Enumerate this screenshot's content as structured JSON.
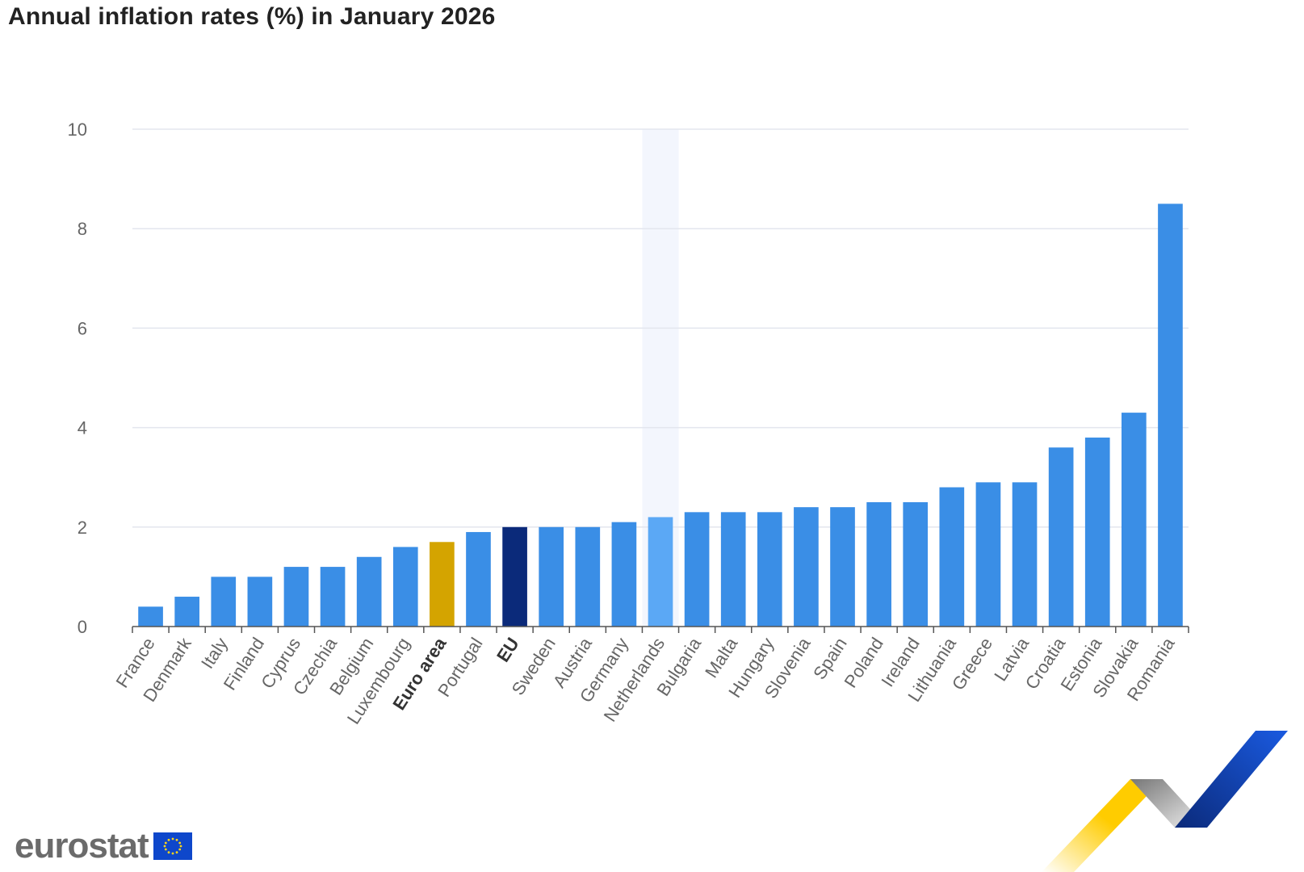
{
  "header": {
    "title": "Annual inflation rates (%) in January 2026"
  },
  "chart_data": {
    "type": "bar",
    "title": "Annual inflation rates (%) in January 2026",
    "xlabel": "",
    "ylabel": "",
    "ylim": [
      0,
      10
    ],
    "yticks": [
      0,
      2,
      4,
      6,
      8,
      10
    ],
    "grid": true,
    "highlighted_category": "Netherlands",
    "categories": [
      "France",
      "Denmark",
      "Italy",
      "Finland",
      "Cyprus",
      "Czechia",
      "Belgium",
      "Luxembourg",
      "Euro area",
      "Portugal",
      "EU",
      "Sweden",
      "Austria",
      "Germany",
      "Netherlands",
      "Bulgaria",
      "Malta",
      "Hungary",
      "Slovenia",
      "Spain",
      "Poland",
      "Ireland",
      "Lithuania",
      "Greece",
      "Latvia",
      "Croatia",
      "Estonia",
      "Slovakia",
      "Romania"
    ],
    "values": [
      0.4,
      0.6,
      1.0,
      1.0,
      1.2,
      1.2,
      1.4,
      1.6,
      1.7,
      1.9,
      2.0,
      2.0,
      2.0,
      2.1,
      2.2,
      2.3,
      2.3,
      2.3,
      2.4,
      2.4,
      2.5,
      2.5,
      2.8,
      2.9,
      2.9,
      3.6,
      3.8,
      4.3,
      8.5
    ],
    "bold_categories": [
      "Euro area",
      "EU"
    ],
    "colors": {
      "default": "#3a8ee6",
      "Euro area": "#d4a400",
      "EU": "#0b2a7a",
      "Netherlands": "#5ba8f5",
      "highlight_band": "#f3f6fd",
      "grid": "#e3e6ee",
      "axis": "#555555",
      "tick_text": "#666666"
    }
  },
  "branding": {
    "logo_text": "eurostat",
    "flag_color": "#0e47cb"
  }
}
